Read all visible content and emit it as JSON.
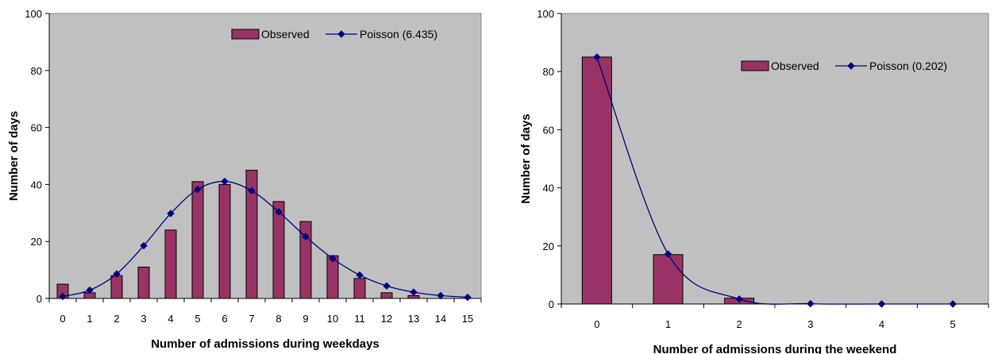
{
  "chart_data": [
    {
      "type": "bar",
      "xlabel": "Number of admissions during weekdays",
      "ylabel": "Number of days",
      "ylim": [
        0,
        100
      ],
      "yticks": [
        0,
        20,
        40,
        60,
        80,
        100
      ],
      "categories": [
        "0",
        "1",
        "2",
        "3",
        "4",
        "5",
        "6",
        "7",
        "8",
        "9",
        "10",
        "11",
        "12",
        "13",
        "14",
        "15"
      ],
      "grid": false,
      "legend_position": "top-right",
      "series": [
        {
          "name": "Observed",
          "kind": "bar",
          "color": "#993366",
          "values": [
            5,
            2,
            8,
            11,
            24,
            41,
            40,
            45,
            34,
            27,
            15,
            7,
            2,
            1,
            0,
            0
          ]
        },
        {
          "name": "Poisson (6.435)",
          "kind": "line",
          "color": "#000080",
          "values": [
            0.7,
            2.9,
            8.6,
            18.5,
            29.8,
            38.3,
            41.1,
            37.8,
            30.4,
            21.7,
            14.0,
            8.2,
            4.4,
            2.2,
            1.0,
            0.4
          ]
        }
      ]
    },
    {
      "type": "bar",
      "xlabel": "Number of admissions during the weekend",
      "ylabel": "Number of days",
      "ylim": [
        0,
        100
      ],
      "yticks": [
        0,
        20,
        40,
        60,
        80,
        100
      ],
      "categories": [
        "0",
        "1",
        "2",
        "3",
        "4",
        "5"
      ],
      "grid": false,
      "legend_position": "top-right",
      "series": [
        {
          "name": "Observed",
          "kind": "bar",
          "color": "#993366",
          "values": [
            85,
            17,
            2,
            0,
            0,
            0
          ]
        },
        {
          "name": "Poisson (0.202)",
          "kind": "line",
          "color": "#000080",
          "values": [
            85,
            17.2,
            1.7,
            0.1,
            0,
            0
          ]
        }
      ]
    }
  ]
}
